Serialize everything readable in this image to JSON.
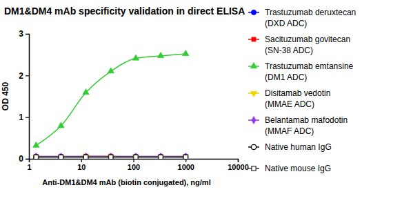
{
  "chart_data": {
    "type": "line",
    "title": "DM1&DM4 mAb specificity validation in direct ELISA",
    "x_label": "Anti-DM1&DM4 mAb (biotin conjugated), ng/ml",
    "y_label": "OD 450",
    "log": "x",
    "grid": false,
    "legend": "right",
    "x": [
      1.37,
      4.1,
      12.3,
      37,
      111,
      333,
      1000
    ],
    "xlim": [
      1,
      10000
    ],
    "xticks": [
      1,
      10,
      100,
      1000,
      10000
    ],
    "ylim": [
      0,
      3
    ],
    "yticks": [
      0,
      1,
      2,
      3
    ],
    "series": [
      {
        "name": "Trastuzumab deruxtecan\n(DXD ADC)",
        "color": "#0000ff",
        "marker": "circle",
        "values": [
          0.06,
          0.06,
          0.06,
          0.06,
          0.06,
          0.06,
          0.06
        ]
      },
      {
        "name": "Sacituzumab govitecan\n(SN-38 ADC)",
        "color": "#ff0000",
        "marker": "square",
        "values": [
          0.05,
          0.05,
          0.06,
          0.06,
          0.05,
          0.05,
          0.05
        ]
      },
      {
        "name": "Trastuzumab emtansine\n(DM1 ADC)",
        "color": "#33cc33",
        "marker": "triangle",
        "values": [
          0.32,
          0.79,
          1.59,
          2.1,
          2.41,
          2.47,
          2.52
        ]
      },
      {
        "name": "Disitamab vedotin\n(MMAE ADC)",
        "color": "#f2d600",
        "marker": "triangle-down",
        "values": [
          0.05,
          0.05,
          0.05,
          0.05,
          0.05,
          0.05,
          0.05
        ]
      },
      {
        "name": "Belantamab mafodotin\n(MMAF ADC)",
        "color": "#9933ff",
        "marker": "diamond",
        "values": [
          0.05,
          0.05,
          0.05,
          0.05,
          0.05,
          0.05,
          0.05
        ]
      },
      {
        "name": "Native human IgG",
        "color": "#000000",
        "marker": "circle-open",
        "values": [
          0.04,
          0.04,
          0.04,
          0.04,
          0.04,
          0.04,
          0.04
        ]
      },
      {
        "name": "Native mouse IgG",
        "color": "#333333",
        "marker": "square-open",
        "values": [
          0.04,
          0.04,
          0.04,
          0.04,
          0.04,
          0.04,
          0.04
        ]
      }
    ]
  }
}
